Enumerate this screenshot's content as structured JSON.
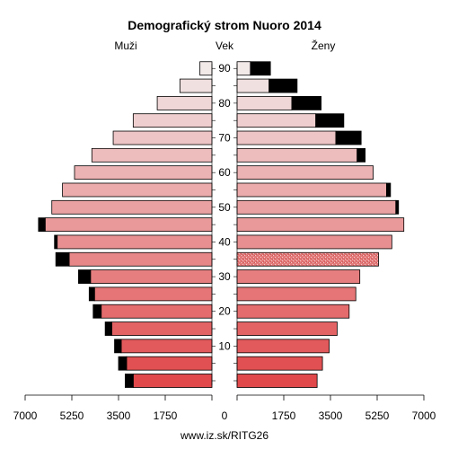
{
  "chart_data": {
    "type": "bar",
    "title": "Demografický strom Nuoro 2014",
    "left_label": "Muži",
    "center_label": "Vek",
    "right_label": "Ženy",
    "footer": "www.iz.sk/RITG26",
    "age_groups": [
      "0-4",
      "5-9",
      "10-14",
      "15-19",
      "20-24",
      "25-29",
      "30-34",
      "35-39",
      "40-44",
      "45-49",
      "50-54",
      "55-59",
      "60-64",
      "65-69",
      "70-74",
      "75-79",
      "80-84",
      "85-89",
      "90+"
    ],
    "age_ticks": [
      "10",
      "20",
      "30",
      "40",
      "50",
      "60",
      "70",
      "80",
      "90"
    ],
    "x_ticks": [
      "7000",
      "5250",
      "3500",
      "1750",
      "0",
      "1750",
      "3500",
      "5250",
      "7000"
    ],
    "xlim": [
      0,
      7000
    ],
    "series": [
      {
        "name": "Muži",
        "values": [
          2950,
          3200,
          3400,
          3750,
          4150,
          4400,
          4550,
          5350,
          5800,
          6250,
          6000,
          5600,
          5150,
          4500,
          3700,
          2950,
          2050,
          1200,
          450
        ],
        "excess": [
          300,
          300,
          250,
          250,
          300,
          200,
          450,
          500,
          100,
          250,
          0,
          0,
          0,
          0,
          0,
          0,
          0,
          0,
          0
        ]
      },
      {
        "name": "Ženy",
        "values": [
          3000,
          3200,
          3450,
          3750,
          4200,
          4450,
          4600,
          5300,
          5800,
          6250,
          5950,
          5600,
          5100,
          4500,
          3700,
          2950,
          2050,
          1200,
          500
        ],
        "excess": [
          0,
          0,
          0,
          0,
          0,
          0,
          0,
          0,
          0,
          0,
          100,
          150,
          0,
          300,
          950,
          1050,
          1100,
          1050,
          750
        ]
      }
    ],
    "colors": {
      "excess": "#000000",
      "bar_light": "#f2e9e9",
      "bar_dark": "#e0484a",
      "pattern_bar_index": 7
    }
  }
}
